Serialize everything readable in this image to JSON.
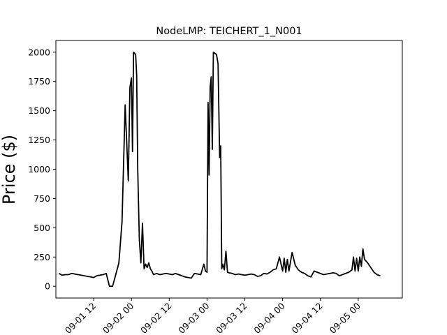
{
  "chart_data": {
    "type": "line",
    "title": "NodeLMP: TEICHERT_1_N001",
    "xlabel": "",
    "ylabel": "Price ($)",
    "xlim": [
      "2020-09-01 00:00",
      "2020-09-05 14:00"
    ],
    "ylim": [
      -100,
      2100
    ],
    "grid": false,
    "line_color": "#000000",
    "x_ticks": [
      "09-01 12",
      "09-02 00",
      "09-02 12",
      "09-03 00",
      "09-03 12",
      "09-04 00",
      "09-04 12",
      "09-05 00"
    ],
    "y_ticks": [
      0,
      250,
      500,
      750,
      1000,
      1250,
      1500,
      1750,
      2000
    ],
    "series": [
      {
        "x": [
          "2020-09-01 01:00",
          "2020-09-01 02:00",
          "2020-09-01 03:00",
          "2020-09-01 04:00",
          "2020-09-01 05:00",
          "2020-09-01 06:00",
          "2020-09-01 07:00",
          "2020-09-01 08:00",
          "2020-09-01 09:00",
          "2020-09-01 10:00",
          "2020-09-01 11:00",
          "2020-09-01 12:00",
          "2020-09-01 13:00",
          "2020-09-01 14:00",
          "2020-09-01 15:00",
          "2020-09-01 16:00",
          "2020-09-01 17:00",
          "2020-09-01 18:00",
          "2020-09-01 19:00",
          "2020-09-01 20:00",
          "2020-09-01 21:00",
          "2020-09-01 22:00",
          "2020-09-01 23:00",
          "2020-09-01 23:30",
          "2020-09-02 00:00",
          "2020-09-02 00:20",
          "2020-09-02 00:40",
          "2020-09-02 01:00",
          "2020-09-02 01:20",
          "2020-09-02 01:40",
          "2020-09-02 02:00",
          "2020-09-02 02:30",
          "2020-09-02 03:00",
          "2020-09-02 03:30",
          "2020-09-02 04:00",
          "2020-09-02 04:30",
          "2020-09-02 05:00",
          "2020-09-02 05:30",
          "2020-09-02 06:00",
          "2020-09-02 06:30",
          "2020-09-02 07:00",
          "2020-09-02 08:00",
          "2020-09-02 09:00",
          "2020-09-02 10:00",
          "2020-09-02 11:00",
          "2020-09-02 12:00",
          "2020-09-02 13:00",
          "2020-09-02 14:00",
          "2020-09-02 15:00",
          "2020-09-02 16:00",
          "2020-09-02 17:00",
          "2020-09-02 18:00",
          "2020-09-02 19:00",
          "2020-09-02 20:00",
          "2020-09-02 21:00",
          "2020-09-02 22:00",
          "2020-09-02 23:00",
          "2020-09-02 23:30",
          "2020-09-03 00:00",
          "2020-09-03 00:20",
          "2020-09-03 00:40",
          "2020-09-03 01:00",
          "2020-09-03 01:20",
          "2020-09-03 01:40",
          "2020-09-03 02:00",
          "2020-09-03 02:30",
          "2020-09-03 03:00",
          "2020-09-03 03:30",
          "2020-09-03 04:00",
          "2020-09-03 04:20",
          "2020-09-03 04:40",
          "2020-09-03 05:00",
          "2020-09-03 05:30",
          "2020-09-03 06:00",
          "2020-09-03 06:30",
          "2020-09-03 07:00",
          "2020-09-03 08:00",
          "2020-09-03 09:00",
          "2020-09-03 10:00",
          "2020-09-03 11:00",
          "2020-09-03 12:00",
          "2020-09-03 13:00",
          "2020-09-03 14:00",
          "2020-09-03 15:00",
          "2020-09-03 16:00",
          "2020-09-03 17:00",
          "2020-09-03 18:00",
          "2020-09-03 19:00",
          "2020-09-03 20:00",
          "2020-09-03 21:00",
          "2020-09-03 22:00",
          "2020-09-03 23:00",
          "2020-09-04 00:00",
          "2020-09-04 00:30",
          "2020-09-04 01:00",
          "2020-09-04 01:30",
          "2020-09-04 02:00",
          "2020-09-04 03:00",
          "2020-09-04 04:00",
          "2020-09-04 05:00",
          "2020-09-04 06:00",
          "2020-09-04 07:00",
          "2020-09-04 08:00",
          "2020-09-04 09:00",
          "2020-09-04 10:00",
          "2020-09-04 11:00",
          "2020-09-04 12:00",
          "2020-09-04 13:00",
          "2020-09-04 14:00",
          "2020-09-04 15:00",
          "2020-09-04 16:00",
          "2020-09-04 17:00",
          "2020-09-04 18:00",
          "2020-09-04 19:00",
          "2020-09-04 20:00",
          "2020-09-04 21:00",
          "2020-09-04 22:00",
          "2020-09-04 22:30",
          "2020-09-04 23:00",
          "2020-09-04 23:30",
          "2020-09-05 00:00",
          "2020-09-05 00:30",
          "2020-09-05 01:00",
          "2020-09-05 01:30",
          "2020-09-05 02:00",
          "2020-09-05 03:00",
          "2020-09-05 04:00",
          "2020-09-05 05:00",
          "2020-09-05 06:00",
          "2020-09-05 07:00"
        ],
        "y": [
          110,
          95,
          100,
          100,
          110,
          105,
          100,
          95,
          90,
          85,
          80,
          75,
          90,
          95,
          100,
          110,
          0,
          0,
          100,
          200,
          550,
          1550,
          900,
          1700,
          1780,
          1150,
          2000,
          1990,
          1980,
          1800,
          1000,
          400,
          200,
          540,
          150,
          190,
          160,
          200,
          150,
          130,
          100,
          110,
          100,
          105,
          110,
          105,
          100,
          110,
          100,
          90,
          80,
          75,
          70,
          110,
          105,
          100,
          190,
          130,
          120,
          1570,
          950,
          1700,
          1790,
          1170,
          2000,
          1990,
          1980,
          1900,
          1100,
          1200,
          150,
          190,
          140,
          300,
          120,
          115,
          110,
          100,
          105,
          100,
          95,
          100,
          105,
          100,
          85,
          90,
          110,
          105,
          120,
          140,
          150,
          250,
          130,
          240,
          120,
          230,
          130,
          290,
          180,
          140,
          120,
          110,
          90,
          80,
          130,
          120,
          110,
          100,
          105,
          110,
          115,
          110,
          90,
          100,
          110,
          120,
          140,
          250,
          130,
          240,
          130,
          250,
          170,
          320,
          230,
          200,
          160,
          120,
          100,
          90
        ]
      }
    ]
  }
}
